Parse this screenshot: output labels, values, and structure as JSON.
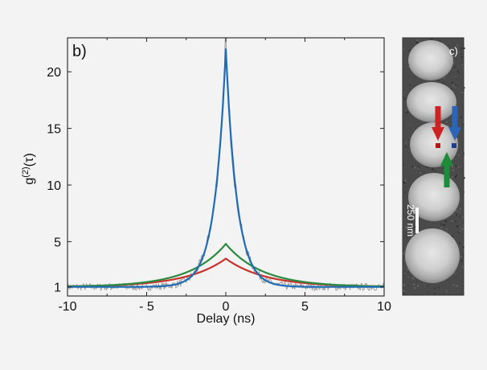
{
  "figure": {
    "panel_b_label": "b)",
    "panel_c_label": "c)",
    "scale_bar_label": "250 nm"
  },
  "chart_data": {
    "type": "line",
    "title": "",
    "xlabel": "Delay (ns)",
    "ylabel": "g(2)(τ)",
    "ylabel_main": "g",
    "ylabel_sup": "(2)",
    "ylabel_arg": "(τ)",
    "xlim": [
      -10,
      10
    ],
    "ylim": [
      0.2,
      23.0
    ],
    "x_ticks": [
      -10,
      -5,
      0,
      5,
      10
    ],
    "x_tick_labels": [
      "-10",
      "- 5",
      "0",
      "5",
      "10"
    ],
    "y_ticks": [
      1,
      5,
      10,
      15,
      20
    ],
    "y_tick_labels": [
      "1",
      "5",
      "10",
      "15",
      "20"
    ],
    "grid": false,
    "legend": "none",
    "series": [
      {
        "color": "#9e9e9e",
        "kind": "raw-data",
        "x": [],
        "y": []
      },
      {
        "color": "#1f6bb5",
        "peak_x": 0,
        "peak_y": 22.0,
        "baseline_y": 1.0,
        "decay_ns": 0.7
      },
      {
        "color": "#2a8a3e",
        "peak_x": 0,
        "peak_y": 4.8,
        "baseline_y": 1.0,
        "decay_ns": 2.3
      },
      {
        "color": "#c8322b",
        "peak_x": 0,
        "peak_y": 3.5,
        "baseline_y": 1.0,
        "decay_ns": 2.5
      }
    ]
  },
  "arrows": [
    {
      "color": "#cc2222",
      "direction": "down"
    },
    {
      "color": "#2a65b8",
      "direction": "down"
    },
    {
      "color": "#1b8c3a",
      "direction": "up"
    }
  ]
}
